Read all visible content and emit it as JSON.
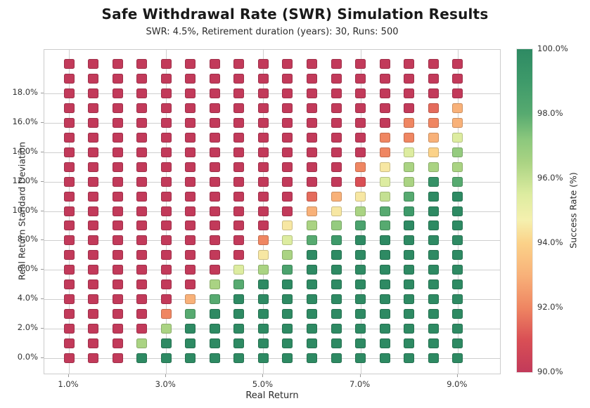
{
  "title": "Safe Withdrawal Rate (SWR) Simulation Results",
  "subtitle": "SWR: 4.5%, Retirement duration (years): 30, Runs: 500",
  "chart_data": {
    "type": "heatmap",
    "title": "Safe Withdrawal Rate (SWR) Simulation Results",
    "subtitle": "SWR: 4.5%, Retirement duration (years): 30, Runs: 500",
    "xlabel": "Real Return",
    "ylabel": "Real Return Standard Deviation",
    "colorbar_label": "Success Rate (%)",
    "grid": true,
    "legend_position": "right-colorbar",
    "x_values_pct": [
      1.0,
      1.5,
      2.0,
      2.5,
      3.0,
      3.5,
      4.0,
      4.5,
      5.0,
      5.5,
      6.0,
      6.5,
      7.0,
      7.5,
      8.0,
      8.5,
      9.0
    ],
    "y_values_pct": [
      0,
      1,
      2,
      3,
      4,
      5,
      6,
      7,
      8,
      9,
      10,
      11,
      12,
      13,
      14,
      15,
      16,
      17,
      18,
      19,
      20
    ],
    "x_ticks": [
      {
        "v": 1,
        "label": "1.0%"
      },
      {
        "v": 3,
        "label": "3.0%"
      },
      {
        "v": 5,
        "label": "5.0%"
      },
      {
        "v": 7,
        "label": "7.0%"
      },
      {
        "v": 9,
        "label": "9.0%"
      }
    ],
    "y_ticks": [
      {
        "v": 0,
        "label": "0.0%"
      },
      {
        "v": 2,
        "label": "2.0%"
      },
      {
        "v": 4,
        "label": "4.0%"
      },
      {
        "v": 6,
        "label": "6.0%"
      },
      {
        "v": 8,
        "label": "8.0%"
      },
      {
        "v": 10,
        "label": "10.0%"
      },
      {
        "v": 12,
        "label": "12.0%"
      },
      {
        "v": 14,
        "label": "14.0%"
      },
      {
        "v": 16,
        "label": "16.0%"
      },
      {
        "v": 18,
        "label": "18.0%"
      }
    ],
    "colorbar_ticks": [
      {
        "v": 90,
        "label": "90.0%"
      },
      {
        "v": 92,
        "label": "92.0%"
      },
      {
        "v": 94,
        "label": "94.0%"
      },
      {
        "v": 96,
        "label": "96.0%"
      },
      {
        "v": 98,
        "label": "98.0%"
      },
      {
        "v": 100,
        "label": "100.0%"
      }
    ],
    "vmin": 90,
    "vmax": 100,
    "colormap_stops": [
      [
        90.0,
        "#c23a5a"
      ],
      [
        91.0,
        "#d94f55"
      ],
      [
        92.0,
        "#ef8662"
      ],
      [
        93.0,
        "#f8b179"
      ],
      [
        94.0,
        "#fbd289"
      ],
      [
        94.7,
        "#f5f0ae"
      ],
      [
        95.5,
        "#ddeca0"
      ],
      [
        96.5,
        "#aad383"
      ],
      [
        97.2,
        "#8cc87d"
      ],
      [
        98.0,
        "#57aa70"
      ],
      [
        99.0,
        "#3e9a6a"
      ],
      [
        100.0,
        "#2e8a63"
      ]
    ],
    "success_rate_rows_bottom_to_top": [
      [
        90,
        90,
        90,
        100,
        100,
        100,
        100,
        100,
        100,
        100,
        100,
        100,
        100,
        100,
        100,
        100,
        100
      ],
      [
        90,
        90,
        90,
        96.5,
        100,
        100,
        100,
        100,
        100,
        100,
        100,
        100,
        100,
        100,
        100,
        100,
        100
      ],
      [
        90,
        90,
        90,
        90,
        96.5,
        100,
        100,
        100,
        100,
        100,
        100,
        100,
        100,
        100,
        100,
        100,
        100
      ],
      [
        90,
        90,
        90,
        90,
        92,
        98,
        100,
        100,
        100,
        100,
        100,
        100,
        100,
        100,
        100,
        100,
        100
      ],
      [
        90,
        90,
        90,
        90,
        90,
        93,
        98,
        100,
        100,
        100,
        100,
        100,
        100,
        100,
        100,
        100,
        100
      ],
      [
        90,
        90,
        90,
        90,
        90,
        90,
        96.5,
        98,
        100,
        100,
        100,
        100,
        100,
        100,
        100,
        100,
        100
      ],
      [
        90,
        90,
        90,
        90,
        90,
        90,
        90,
        95.5,
        96.5,
        98.5,
        100,
        100,
        100,
        100,
        100,
        100,
        100
      ],
      [
        90,
        90,
        90,
        90,
        90,
        90,
        90,
        90,
        94.5,
        96.5,
        100,
        100,
        100,
        100,
        100,
        100,
        100
      ],
      [
        90,
        90,
        90,
        90,
        90,
        90,
        90,
        90,
        92,
        95.5,
        98,
        99,
        100,
        100,
        100,
        100,
        100
      ],
      [
        90,
        90,
        90,
        90,
        90,
        90,
        90,
        90,
        90,
        94.5,
        96.5,
        97,
        98.5,
        98,
        100,
        100,
        100
      ],
      [
        90,
        90,
        90,
        90,
        90,
        90,
        90,
        90,
        90,
        90,
        93,
        94.5,
        96.5,
        98,
        99,
        100,
        100
      ],
      [
        90,
        90,
        90,
        90,
        90,
        90,
        90,
        90,
        90,
        90,
        91.5,
        93,
        94.5,
        96,
        98,
        100,
        100
      ],
      [
        90,
        90,
        90,
        90,
        90,
        90,
        90,
        90,
        90,
        90,
        90,
        90,
        91,
        95.5,
        96.5,
        99.5,
        98
      ],
      [
        90,
        90,
        90,
        90,
        90,
        90,
        90,
        90,
        90,
        90,
        90,
        90,
        92,
        94.5,
        96.5,
        96.5,
        96.5
      ],
      [
        90,
        90,
        90,
        90,
        90,
        90,
        90,
        90,
        90,
        90,
        90,
        90,
        90,
        92,
        95.5,
        94,
        97
      ],
      [
        90,
        90,
        90,
        90,
        90,
        90,
        90,
        90,
        90,
        90,
        90,
        90,
        90,
        92,
        92,
        93,
        95.5
      ],
      [
        90,
        90,
        90,
        90,
        90,
        90,
        90,
        90,
        90,
        90,
        90,
        90,
        90,
        90,
        92,
        92,
        93
      ],
      [
        90,
        90,
        90,
        90,
        90,
        90,
        90,
        90,
        90,
        90,
        90,
        90,
        90,
        90,
        90,
        91.5,
        93
      ],
      [
        90,
        90,
        90,
        90,
        90,
        90,
        90,
        90,
        90,
        90,
        90,
        90,
        90,
        90,
        90,
        90,
        90
      ],
      [
        90,
        90,
        90,
        90,
        90,
        90,
        90,
        90,
        90,
        90,
        90,
        90,
        90,
        90,
        90,
        90,
        90
      ],
      [
        90,
        90,
        90,
        90,
        90,
        90,
        90,
        90,
        90,
        90,
        90,
        90,
        90,
        90,
        90,
        90,
        90
      ]
    ]
  }
}
